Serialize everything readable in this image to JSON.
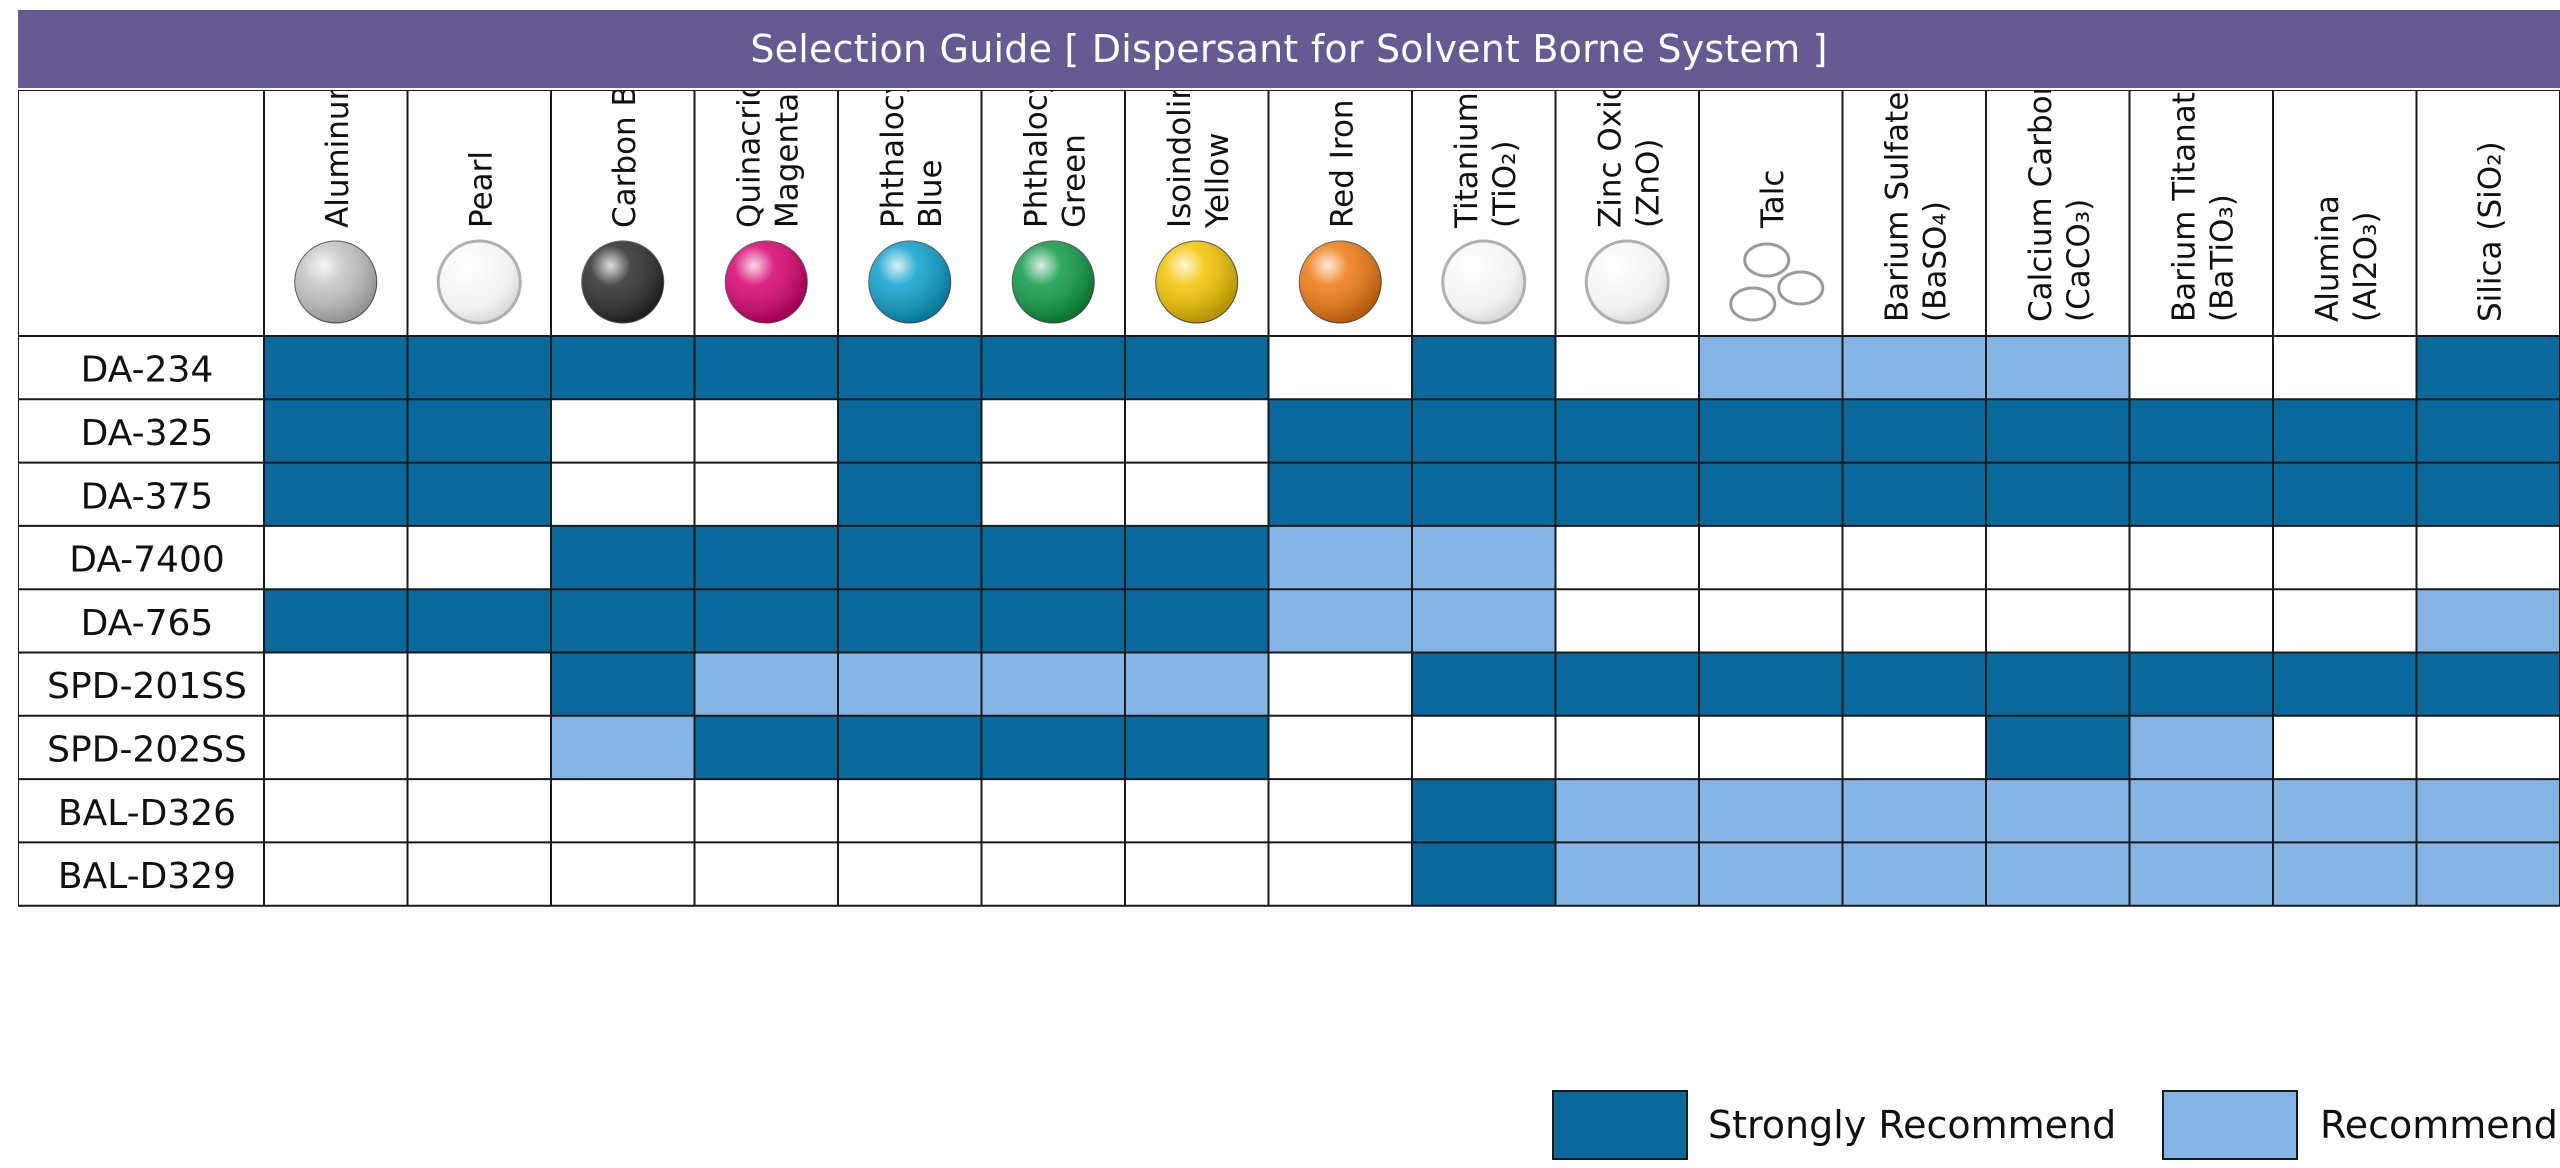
{
  "title": "Selection Guide [ Dispersant for Solvent Borne System ]",
  "colors": {
    "header": "#655a91",
    "strong": "#0b689b",
    "recommend": "#85b4e2",
    "empty": "#ffffff",
    "grid": "#1a1a1a"
  },
  "columns": [
    {
      "lines": [
        "Aluminum"
      ],
      "icon": "sphere",
      "color": "#c4c4c4",
      "icon_name": "grey-sphere-icon"
    },
    {
      "lines": [
        "Pearl"
      ],
      "icon": "ring",
      "icon_name": "white-sphere-icon"
    },
    {
      "lines": [
        "Carbon Black"
      ],
      "icon": "sphere",
      "color": "#2b2b2b",
      "icon_name": "black-sphere-icon"
    },
    {
      "lines": [
        "Quinacridone",
        "Magenta"
      ],
      "icon": "sphere",
      "color": "#d8006f",
      "icon_name": "magenta-sphere-icon"
    },
    {
      "lines": [
        "Phthalocyanine",
        "Blue"
      ],
      "icon": "sphere",
      "color": "#0aa0cc",
      "icon_name": "blue-sphere-icon"
    },
    {
      "lines": [
        "Phthalocyanine",
        "Green"
      ],
      "icon": "sphere",
      "color": "#0d9a47",
      "icon_name": "green-sphere-icon"
    },
    {
      "lines": [
        "Isoindolinone",
        "Yellow"
      ],
      "icon": "sphere",
      "color": "#f2c500",
      "icon_name": "yellow-sphere-icon"
    },
    {
      "lines": [
        "Red Iron Oxide"
      ],
      "icon": "sphere",
      "color": "#ee7a10",
      "icon_name": "orange-sphere-icon"
    },
    {
      "lines": [
        "Titanium Dioxide",
        "(TiO₂)"
      ],
      "icon": "ring",
      "icon_name": "white-sphere-icon"
    },
    {
      "lines": [
        "Zinc Oxide",
        "(ZnO)"
      ],
      "icon": "ring",
      "icon_name": "white-sphere-icon"
    },
    {
      "lines": [
        "Talc"
      ],
      "icon": "flakes",
      "icon_name": "talc-flakes-icon"
    },
    {
      "lines": [
        "Barium Sulfate",
        "(BaSO₄)"
      ],
      "icon": "none"
    },
    {
      "lines": [
        "Calcium Carbonate",
        "(CaCO₃)"
      ],
      "icon": "none"
    },
    {
      "lines": [
        "Barium Titanate",
        "(BaTiO₃)"
      ],
      "icon": "none"
    },
    {
      "lines": [
        "Alumina",
        "(Al2O₃)"
      ],
      "icon": "none"
    },
    {
      "lines": [
        "Silica (SiO₂)"
      ],
      "icon": "none"
    }
  ],
  "rows": [
    {
      "name": "DA-234",
      "cells": [
        2,
        2,
        2,
        2,
        2,
        2,
        2,
        0,
        2,
        0,
        1,
        1,
        1,
        0,
        0,
        2
      ]
    },
    {
      "name": "DA-325",
      "cells": [
        2,
        2,
        0,
        0,
        2,
        0,
        0,
        2,
        2,
        2,
        2,
        2,
        2,
        2,
        2,
        2
      ]
    },
    {
      "name": "DA-375",
      "cells": [
        2,
        2,
        0,
        0,
        2,
        0,
        0,
        2,
        2,
        2,
        2,
        2,
        2,
        2,
        2,
        2
      ]
    },
    {
      "name": "DA-7400",
      "cells": [
        0,
        0,
        2,
        2,
        2,
        2,
        2,
        1,
        1,
        0,
        0,
        0,
        0,
        0,
        0,
        0
      ]
    },
    {
      "name": "DA-765",
      "cells": [
        2,
        2,
        2,
        2,
        2,
        2,
        2,
        1,
        1,
        0,
        0,
        0,
        0,
        0,
        0,
        1
      ]
    },
    {
      "name": "SPD-201SS",
      "cells": [
        0,
        0,
        2,
        1,
        1,
        1,
        1,
        0,
        2,
        2,
        2,
        2,
        2,
        2,
        2,
        2
      ]
    },
    {
      "name": "SPD-202SS",
      "cells": [
        0,
        0,
        1,
        2,
        2,
        2,
        2,
        0,
        0,
        0,
        0,
        0,
        2,
        1,
        0,
        0
      ]
    },
    {
      "name": "BAL-D326",
      "cells": [
        0,
        0,
        0,
        0,
        0,
        0,
        0,
        0,
        2,
        1,
        1,
        1,
        1,
        1,
        1,
        1
      ]
    },
    {
      "name": "BAL-D329",
      "cells": [
        0,
        0,
        0,
        0,
        0,
        0,
        0,
        0,
        2,
        1,
        1,
        1,
        1,
        1,
        1,
        1
      ]
    }
  ],
  "legend": {
    "strong_label": "Strongly Recommend",
    "recommend_label": "Recommend"
  }
}
